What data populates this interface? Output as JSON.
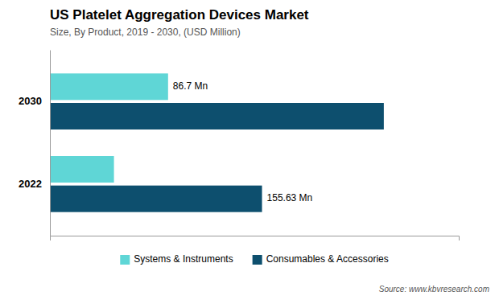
{
  "chart_data": {
    "type": "bar",
    "orientation": "horizontal",
    "title": "US Platelet Aggregation Devices Market",
    "subtitle": "Size, By Product, 2019 - 2030, (USD Million)",
    "source": "Source: www.kbvresearch.com",
    "categories": [
      "2030",
      "2022"
    ],
    "series": [
      {
        "name": "Systems & Instruments",
        "color": "#5FD6D6",
        "values": [
          86.7,
          47.0
        ]
      },
      {
        "name": "Consumables & Accessories",
        "color": "#0D4F6E",
        "values": [
          245.0,
          155.63
        ]
      }
    ],
    "annotations": [
      {
        "text": "86.7 Mn",
        "x": 86.7,
        "y": "2030",
        "series": "Systems & Instruments"
      },
      {
        "text": "155.63 Mn",
        "x": 155.63,
        "y": "2022",
        "series": "Consumables & Accessories"
      }
    ],
    "xlim": [
      0,
      300
    ],
    "tick_labels": "y",
    "grid": false,
    "legend": "bottom"
  }
}
